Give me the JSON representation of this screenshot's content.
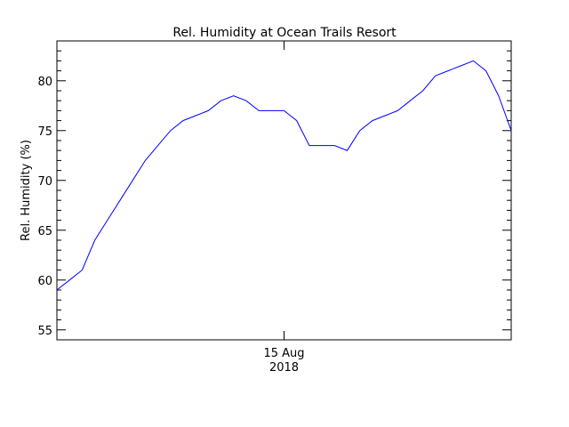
{
  "chart_data": {
    "type": "line",
    "title": "Rel. Humidity at Ocean Trails Resort",
    "ylabel": "Rel. Humidity (%)",
    "xlabel": "",
    "x_tick_label": "15 Aug",
    "x_tick_sublabel": "2018",
    "ylim": [
      54,
      84
    ],
    "xlim": [
      "2018-08-14 06:00",
      "2018-08-15 18:00"
    ],
    "yticks": [
      55,
      60,
      65,
      70,
      75,
      80
    ],
    "x_major_tick": "2018-08-15 00:00",
    "grid": false,
    "series": [
      {
        "color": "#0000ff",
        "x": [
          "2018-08-14 06:00",
          "2018-08-14 07:00",
          "2018-08-14 08:00",
          "2018-08-14 09:00",
          "2018-08-14 10:00",
          "2018-08-14 11:00",
          "2018-08-14 12:00",
          "2018-08-14 13:00",
          "2018-08-14 14:00",
          "2018-08-14 15:00",
          "2018-08-14 16:00",
          "2018-08-14 17:00",
          "2018-08-14 18:00",
          "2018-08-14 19:00",
          "2018-08-14 20:00",
          "2018-08-14 21:00",
          "2018-08-14 22:00",
          "2018-08-14 23:00",
          "2018-08-15 00:00",
          "2018-08-15 01:00",
          "2018-08-15 02:00",
          "2018-08-15 03:00",
          "2018-08-15 04:00",
          "2018-08-15 05:00",
          "2018-08-15 06:00",
          "2018-08-15 07:00",
          "2018-08-15 08:00",
          "2018-08-15 09:00",
          "2018-08-15 10:00",
          "2018-08-15 11:00",
          "2018-08-15 12:00",
          "2018-08-15 13:00",
          "2018-08-15 14:00",
          "2018-08-15 15:00",
          "2018-08-15 16:00",
          "2018-08-15 17:00",
          "2018-08-15 18:00"
        ],
        "values": [
          59,
          60,
          61,
          64,
          66,
          68,
          70,
          72,
          73.5,
          75,
          76,
          76.5,
          77,
          78,
          78.5,
          78,
          77,
          77,
          77,
          76,
          73.5,
          73.5,
          73.5,
          73,
          75,
          76,
          76.5,
          77,
          78,
          79,
          80.5,
          81,
          81.5,
          82,
          81,
          78.5,
          75
        ]
      }
    ]
  }
}
